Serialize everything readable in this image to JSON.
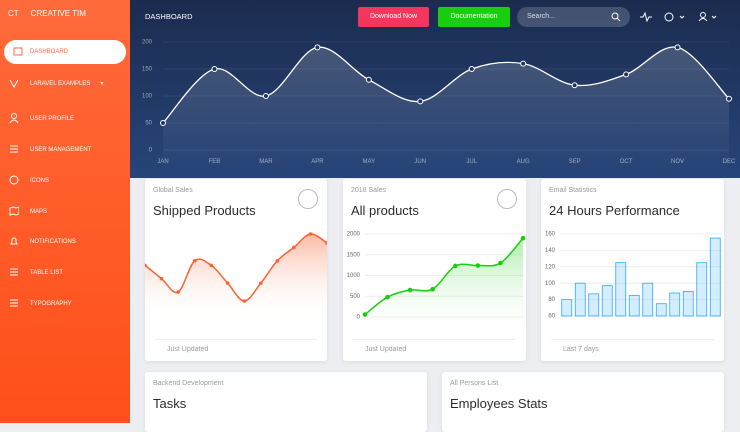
{
  "sidebar": {
    "logo": "CT",
    "brand": "CREATIVE TIM",
    "items": [
      "DASHBOARD",
      "LARAVEL EXAMPLES",
      "USER PROFILE",
      "USER MANAGEMENT",
      "ICONS",
      "MAPS",
      "NOTIFICATIONS",
      "TABLE LIST",
      "TYPOGRAPHY"
    ]
  },
  "navbar": {
    "title": "DASHBOARD",
    "buttons": [
      "Download Now",
      "Documentation"
    ],
    "search_placeholder": "Search..."
  },
  "chart_data": [
    {
      "type": "area",
      "categories": [
        "JAN",
        "FEB",
        "MAR",
        "APR",
        "MAY",
        "JUN",
        "JUL",
        "AUG",
        "SEP",
        "OCT",
        "NOV",
        "DEC"
      ],
      "values": [
        50,
        150,
        100,
        190,
        130,
        90,
        150,
        160,
        120,
        140,
        190,
        95
      ],
      "color": "#ffffff",
      "ylim": [
        0,
        200
      ],
      "yticks": [
        0,
        50,
        100,
        150,
        200
      ],
      "grid": true
    },
    {
      "type": "area",
      "subtitle": "Global Sales",
      "title": "Shipped Products",
      "footer": "Just Updated",
      "values": [
        60,
        45,
        30,
        65,
        60,
        40,
        20,
        40,
        65,
        80,
        95,
        85
      ],
      "color": "#f96332"
    },
    {
      "type": "area",
      "subtitle": "2018 Sales",
      "title": "All products",
      "footer": "Just Updated",
      "values": [
        60,
        480,
        650,
        670,
        1230,
        1240,
        1300,
        1900
      ],
      "color": "#18ce0f",
      "ylim": [
        0,
        2000
      ],
      "yticks": [
        0,
        500,
        1000,
        1500,
        2000
      ],
      "grid": true
    },
    {
      "type": "bar",
      "subtitle": "Email Statistics",
      "title": "24 Hours Performance",
      "footer": "Last 7 days",
      "values": [
        80,
        100,
        87,
        97,
        125,
        85,
        100,
        75,
        88,
        90,
        125,
        155
      ],
      "color": "#2ca8ff",
      "ylim": [
        60,
        160
      ],
      "yticks": [
        60,
        80,
        100,
        120,
        140,
        160
      ],
      "grid": true
    }
  ],
  "cards": [
    {
      "subtitle": "Backend Development",
      "title": "Tasks"
    },
    {
      "subtitle": "All Persons List",
      "title": "Employees Stats"
    }
  ]
}
